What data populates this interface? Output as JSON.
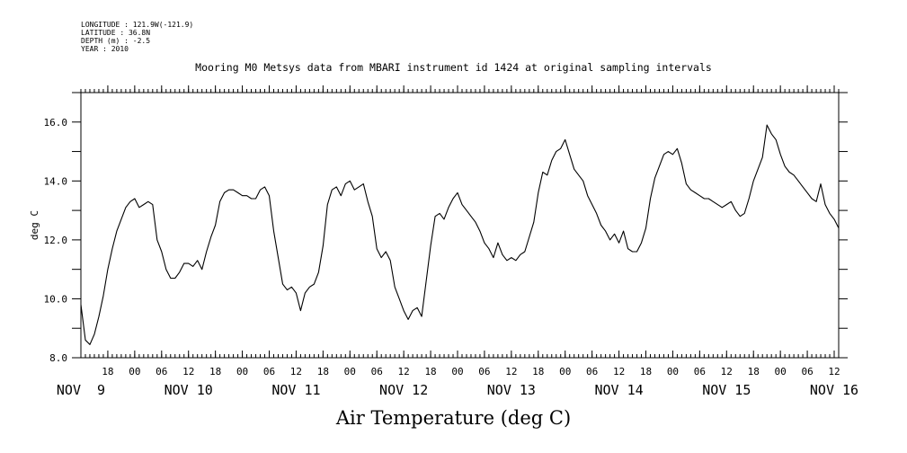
{
  "header": {
    "longitude": "LONGITUDE : 121.9W(-121.9)",
    "latitude": "LATITUDE : 36.8N",
    "depth": "DEPTH (m) : -2.5",
    "year": "YEAR : 2010"
  },
  "chart_data": {
    "type": "line",
    "title": "Mooring M0 Metsys data from MBARI instrument id 1424 at original sampling intervals",
    "xlabel": "Air Temperature (deg C)",
    "ylabel": "deg C",
    "ylim": [
      8.0,
      17.0
    ],
    "yticks": [
      8.0,
      10.0,
      12.0,
      14.0,
      16.0
    ],
    "ytick_labels": [
      "8.0",
      "10.0",
      "12.0",
      "14.0",
      "16.0"
    ],
    "xlim": [
      "2010-11-09T12:00",
      "2010-11-16T13:00"
    ],
    "hour_ticks": [
      {
        "t": "2010-11-09T18:00",
        "label": "18"
      },
      {
        "t": "2010-11-10T00:00",
        "label": "00"
      },
      {
        "t": "2010-11-10T06:00",
        "label": "06"
      },
      {
        "t": "2010-11-10T12:00",
        "label": "12"
      },
      {
        "t": "2010-11-10T18:00",
        "label": "18"
      },
      {
        "t": "2010-11-11T00:00",
        "label": "00"
      },
      {
        "t": "2010-11-11T06:00",
        "label": "06"
      },
      {
        "t": "2010-11-11T12:00",
        "label": "12"
      },
      {
        "t": "2010-11-11T18:00",
        "label": "18"
      },
      {
        "t": "2010-11-12T00:00",
        "label": "00"
      },
      {
        "t": "2010-11-12T06:00",
        "label": "06"
      },
      {
        "t": "2010-11-12T12:00",
        "label": "12"
      },
      {
        "t": "2010-11-12T18:00",
        "label": "18"
      },
      {
        "t": "2010-11-13T00:00",
        "label": "00"
      },
      {
        "t": "2010-11-13T06:00",
        "label": "06"
      },
      {
        "t": "2010-11-13T12:00",
        "label": "12"
      },
      {
        "t": "2010-11-13T18:00",
        "label": "18"
      },
      {
        "t": "2010-11-14T00:00",
        "label": "00"
      },
      {
        "t": "2010-11-14T06:00",
        "label": "06"
      },
      {
        "t": "2010-11-14T12:00",
        "label": "12"
      },
      {
        "t": "2010-11-14T18:00",
        "label": "18"
      },
      {
        "t": "2010-11-15T00:00",
        "label": "00"
      },
      {
        "t": "2010-11-15T06:00",
        "label": "06"
      },
      {
        "t": "2010-11-15T12:00",
        "label": "12"
      },
      {
        "t": "2010-11-15T18:00",
        "label": "18"
      },
      {
        "t": "2010-11-16T00:00",
        "label": "00"
      },
      {
        "t": "2010-11-16T06:00",
        "label": "06"
      },
      {
        "t": "2010-11-16T12:00",
        "label": "12"
      }
    ],
    "day_labels": [
      {
        "t": "2010-11-09T12:00",
        "label": "NOV  9"
      },
      {
        "t": "2010-11-10T12:00",
        "label": "NOV 10"
      },
      {
        "t": "2010-11-11T12:00",
        "label": "NOV 11"
      },
      {
        "t": "2010-11-12T12:00",
        "label": "NOV 12"
      },
      {
        "t": "2010-11-13T12:00",
        "label": "NOV 13"
      },
      {
        "t": "2010-11-14T12:00",
        "label": "NOV 14"
      },
      {
        "t": "2010-11-15T12:00",
        "label": "NOV 15"
      },
      {
        "t": "2010-11-16T12:00",
        "label": "NOV 16"
      }
    ],
    "series": [
      {
        "points": [
          [
            "2010-11-09T12:00",
            9.8
          ],
          [
            "2010-11-09T13:00",
            8.6
          ],
          [
            "2010-11-09T14:00",
            8.45
          ],
          [
            "2010-11-09T15:00",
            8.8
          ],
          [
            "2010-11-09T16:00",
            9.4
          ],
          [
            "2010-11-09T17:00",
            10.1
          ],
          [
            "2010-11-09T18:00",
            11.0
          ],
          [
            "2010-11-09T19:00",
            11.7
          ],
          [
            "2010-11-09T20:00",
            12.3
          ],
          [
            "2010-11-09T21:00",
            12.7
          ],
          [
            "2010-11-09T22:00",
            13.1
          ],
          [
            "2010-11-09T23:00",
            13.3
          ],
          [
            "2010-11-10T00:00",
            13.4
          ],
          [
            "2010-11-10T01:00",
            13.1
          ],
          [
            "2010-11-10T02:00",
            13.2
          ],
          [
            "2010-11-10T03:00",
            13.3
          ],
          [
            "2010-11-10T04:00",
            13.2
          ],
          [
            "2010-11-10T05:00",
            12.0
          ],
          [
            "2010-11-10T06:00",
            11.6
          ],
          [
            "2010-11-10T07:00",
            11.0
          ],
          [
            "2010-11-10T08:00",
            10.7
          ],
          [
            "2010-11-10T09:00",
            10.7
          ],
          [
            "2010-11-10T10:00",
            10.9
          ],
          [
            "2010-11-10T11:00",
            11.2
          ],
          [
            "2010-11-10T12:00",
            11.2
          ],
          [
            "2010-11-10T13:00",
            11.1
          ],
          [
            "2010-11-10T14:00",
            11.3
          ],
          [
            "2010-11-10T15:00",
            11.0
          ],
          [
            "2010-11-10T16:00",
            11.6
          ],
          [
            "2010-11-10T17:00",
            12.1
          ],
          [
            "2010-11-10T18:00",
            12.5
          ],
          [
            "2010-11-10T19:00",
            13.3
          ],
          [
            "2010-11-10T20:00",
            13.6
          ],
          [
            "2010-11-10T21:00",
            13.7
          ],
          [
            "2010-11-10T22:00",
            13.7
          ],
          [
            "2010-11-10T23:00",
            13.6
          ],
          [
            "2010-11-11T00:00",
            13.5
          ],
          [
            "2010-11-11T01:00",
            13.5
          ],
          [
            "2010-11-11T02:00",
            13.4
          ],
          [
            "2010-11-11T03:00",
            13.4
          ],
          [
            "2010-11-11T04:00",
            13.7
          ],
          [
            "2010-11-11T05:00",
            13.8
          ],
          [
            "2010-11-11T06:00",
            13.5
          ],
          [
            "2010-11-11T07:00",
            12.3
          ],
          [
            "2010-11-11T08:00",
            11.4
          ],
          [
            "2010-11-11T09:00",
            10.5
          ],
          [
            "2010-11-11T10:00",
            10.3
          ],
          [
            "2010-11-11T11:00",
            10.4
          ],
          [
            "2010-11-11T12:00",
            10.2
          ],
          [
            "2010-11-11T13:00",
            9.6
          ],
          [
            "2010-11-11T14:00",
            10.2
          ],
          [
            "2010-11-11T15:00",
            10.4
          ],
          [
            "2010-11-11T16:00",
            10.5
          ],
          [
            "2010-11-11T17:00",
            10.9
          ],
          [
            "2010-11-11T18:00",
            11.8
          ],
          [
            "2010-11-11T19:00",
            13.2
          ],
          [
            "2010-11-11T20:00",
            13.7
          ],
          [
            "2010-11-11T21:00",
            13.8
          ],
          [
            "2010-11-11T22:00",
            13.5
          ],
          [
            "2010-11-11T23:00",
            13.9
          ],
          [
            "2010-11-12T00:00",
            14.0
          ],
          [
            "2010-11-12T01:00",
            13.7
          ],
          [
            "2010-11-12T02:00",
            13.8
          ],
          [
            "2010-11-12T03:00",
            13.9
          ],
          [
            "2010-11-12T04:00",
            13.3
          ],
          [
            "2010-11-12T05:00",
            12.8
          ],
          [
            "2010-11-12T06:00",
            11.7
          ],
          [
            "2010-11-12T07:00",
            11.4
          ],
          [
            "2010-11-12T08:00",
            11.6
          ],
          [
            "2010-11-12T09:00",
            11.3
          ],
          [
            "2010-11-12T10:00",
            10.4
          ],
          [
            "2010-11-12T11:00",
            10.0
          ],
          [
            "2010-11-12T12:00",
            9.6
          ],
          [
            "2010-11-12T13:00",
            9.3
          ],
          [
            "2010-11-12T14:00",
            9.6
          ],
          [
            "2010-11-12T15:00",
            9.7
          ],
          [
            "2010-11-12T16:00",
            9.4
          ],
          [
            "2010-11-12T17:00",
            10.6
          ],
          [
            "2010-11-12T18:00",
            11.8
          ],
          [
            "2010-11-12T19:00",
            12.8
          ],
          [
            "2010-11-12T20:00",
            12.9
          ],
          [
            "2010-11-12T21:00",
            12.7
          ],
          [
            "2010-11-12T22:00",
            13.1
          ],
          [
            "2010-11-12T23:00",
            13.4
          ],
          [
            "2010-11-13T00:00",
            13.6
          ],
          [
            "2010-11-13T01:00",
            13.2
          ],
          [
            "2010-11-13T02:00",
            13.0
          ],
          [
            "2010-11-13T03:00",
            12.8
          ],
          [
            "2010-11-13T04:00",
            12.6
          ],
          [
            "2010-11-13T05:00",
            12.3
          ],
          [
            "2010-11-13T06:00",
            11.9
          ],
          [
            "2010-11-13T07:00",
            11.7
          ],
          [
            "2010-11-13T08:00",
            11.4
          ],
          [
            "2010-11-13T09:00",
            11.9
          ],
          [
            "2010-11-13T10:00",
            11.5
          ],
          [
            "2010-11-13T11:00",
            11.3
          ],
          [
            "2010-11-13T12:00",
            11.4
          ],
          [
            "2010-11-13T13:00",
            11.3
          ],
          [
            "2010-11-13T14:00",
            11.5
          ],
          [
            "2010-11-13T15:00",
            11.6
          ],
          [
            "2010-11-13T16:00",
            12.1
          ],
          [
            "2010-11-13T17:00",
            12.6
          ],
          [
            "2010-11-13T18:00",
            13.6
          ],
          [
            "2010-11-13T19:00",
            14.3
          ],
          [
            "2010-11-13T20:00",
            14.2
          ],
          [
            "2010-11-13T21:00",
            14.7
          ],
          [
            "2010-11-13T22:00",
            15.0
          ],
          [
            "2010-11-13T23:00",
            15.1
          ],
          [
            "2010-11-14T00:00",
            15.4
          ],
          [
            "2010-11-14T01:00",
            14.9
          ],
          [
            "2010-11-14T02:00",
            14.4
          ],
          [
            "2010-11-14T03:00",
            14.2
          ],
          [
            "2010-11-14T04:00",
            14.0
          ],
          [
            "2010-11-14T05:00",
            13.5
          ],
          [
            "2010-11-14T06:00",
            13.2
          ],
          [
            "2010-11-14T07:00",
            12.9
          ],
          [
            "2010-11-14T08:00",
            12.5
          ],
          [
            "2010-11-14T09:00",
            12.3
          ],
          [
            "2010-11-14T10:00",
            12.0
          ],
          [
            "2010-11-14T11:00",
            12.2
          ],
          [
            "2010-11-14T12:00",
            11.9
          ],
          [
            "2010-11-14T13:00",
            12.3
          ],
          [
            "2010-11-14T14:00",
            11.7
          ],
          [
            "2010-11-14T15:00",
            11.6
          ],
          [
            "2010-11-14T16:00",
            11.6
          ],
          [
            "2010-11-14T17:00",
            11.9
          ],
          [
            "2010-11-14T18:00",
            12.4
          ],
          [
            "2010-11-14T19:00",
            13.4
          ],
          [
            "2010-11-14T20:00",
            14.1
          ],
          [
            "2010-11-14T21:00",
            14.5
          ],
          [
            "2010-11-14T22:00",
            14.9
          ],
          [
            "2010-11-14T23:00",
            15.0
          ],
          [
            "2010-11-15T00:00",
            14.9
          ],
          [
            "2010-11-15T01:00",
            15.1
          ],
          [
            "2010-11-15T02:00",
            14.6
          ],
          [
            "2010-11-15T03:00",
            13.9
          ],
          [
            "2010-11-15T04:00",
            13.7
          ],
          [
            "2010-11-15T05:00",
            13.6
          ],
          [
            "2010-11-15T06:00",
            13.5
          ],
          [
            "2010-11-15T07:00",
            13.4
          ],
          [
            "2010-11-15T08:00",
            13.4
          ],
          [
            "2010-11-15T09:00",
            13.3
          ],
          [
            "2010-11-15T10:00",
            13.2
          ],
          [
            "2010-11-15T11:00",
            13.1
          ],
          [
            "2010-11-15T12:00",
            13.2
          ],
          [
            "2010-11-15T13:00",
            13.3
          ],
          [
            "2010-11-15T14:00",
            13.0
          ],
          [
            "2010-11-15T15:00",
            12.8
          ],
          [
            "2010-11-15T16:00",
            12.9
          ],
          [
            "2010-11-15T17:00",
            13.4
          ],
          [
            "2010-11-15T18:00",
            14.0
          ],
          [
            "2010-11-15T19:00",
            14.4
          ],
          [
            "2010-11-15T20:00",
            14.8
          ],
          [
            "2010-11-15T21:00",
            15.9
          ],
          [
            "2010-11-15T22:00",
            15.6
          ],
          [
            "2010-11-15T23:00",
            15.4
          ],
          [
            "2010-11-16T00:00",
            14.9
          ],
          [
            "2010-11-16T01:00",
            14.5
          ],
          [
            "2010-11-16T02:00",
            14.3
          ],
          [
            "2010-11-16T03:00",
            14.2
          ],
          [
            "2010-11-16T04:00",
            14.0
          ],
          [
            "2010-11-16T05:00",
            13.8
          ],
          [
            "2010-11-16T06:00",
            13.6
          ],
          [
            "2010-11-16T07:00",
            13.4
          ],
          [
            "2010-11-16T08:00",
            13.3
          ],
          [
            "2010-11-16T09:00",
            13.9
          ],
          [
            "2010-11-16T10:00",
            13.2
          ],
          [
            "2010-11-16T11:00",
            12.9
          ],
          [
            "2010-11-16T12:00",
            12.7
          ],
          [
            "2010-11-16T13:00",
            12.4
          ]
        ]
      }
    ],
    "grid": false,
    "legend": "none"
  }
}
